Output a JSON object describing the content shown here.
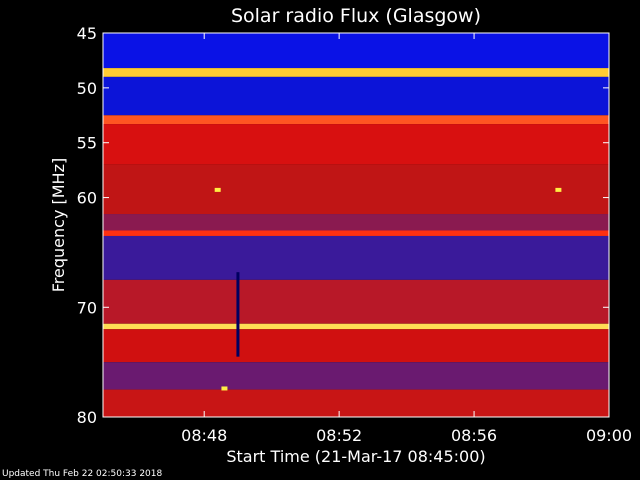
{
  "chart_data": {
    "type": "heatmap",
    "title": "Solar radio Flux (Glasgow)",
    "xlabel": "Start Time (21-Mar-17 08:45:00)",
    "ylabel": "Frequency [MHz]",
    "x_range": [
      "08:45",
      "09:00"
    ],
    "ylim": [
      45,
      80
    ],
    "y_ticks": [
      "45",
      "50",
      "55",
      "60",
      "70",
      "80"
    ],
    "x_ticks": [
      "08:48",
      "08:52",
      "08:56",
      "09:00"
    ],
    "colormap": [
      "#000080",
      "#0000ff",
      "#ff0000",
      "#ffff00",
      "#ffffff"
    ],
    "bands": [
      {
        "from": 45.0,
        "to": 48.2,
        "color": "#0a12e6"
      },
      {
        "from": 48.2,
        "to": 49.0,
        "color": "#ffcc33"
      },
      {
        "from": 49.0,
        "to": 52.5,
        "color": "#0c14d8"
      },
      {
        "from": 52.5,
        "to": 53.3,
        "color": "#ff5522"
      },
      {
        "from": 53.3,
        "to": 57.0,
        "color": "#d81010"
      },
      {
        "from": 57.0,
        "to": 61.5,
        "color": "#c01515"
      },
      {
        "from": 61.5,
        "to": 63.0,
        "color": "#8a1a50"
      },
      {
        "from": 63.0,
        "to": 63.5,
        "color": "#ff3010"
      },
      {
        "from": 63.5,
        "to": 67.5,
        "color": "#3a1a9a"
      },
      {
        "from": 67.5,
        "to": 71.5,
        "color": "#b81828"
      },
      {
        "from": 71.5,
        "to": 72.0,
        "color": "#ffdd55"
      },
      {
        "from": 72.0,
        "to": 75.0,
        "color": "#d01010"
      },
      {
        "from": 75.0,
        "to": 77.5,
        "color": "#6a1a70"
      },
      {
        "from": 77.5,
        "to": 80.0,
        "color": "#c81515"
      }
    ],
    "features": [
      {
        "time": "08:49:00",
        "from": 66.8,
        "to": 74.5,
        "kind": "burst"
      },
      {
        "time": "08:48:24",
        "freq": 59.3,
        "kind": "spot"
      },
      {
        "time": "08:58:30",
        "freq": 59.3,
        "kind": "spot"
      },
      {
        "time": "08:48:36",
        "freq": 77.4,
        "kind": "spot"
      }
    ]
  },
  "footer": "Updated Thu Feb 22 02:50:33 2018"
}
